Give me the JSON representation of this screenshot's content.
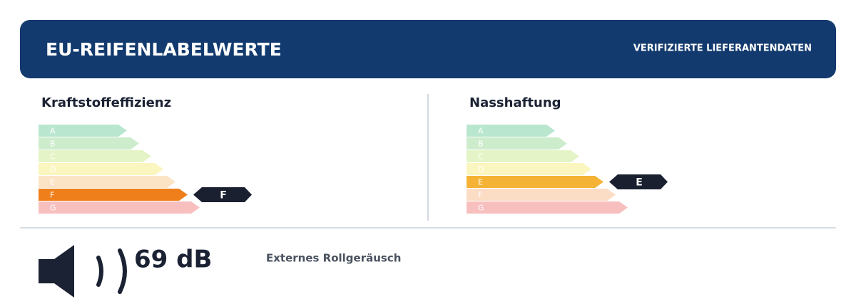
{
  "header": {
    "title": "EU-REIFENLABELWERTE",
    "badge": "VERIFIZIERTE LIEFERANTENDATEN"
  },
  "sections": [
    {
      "title": "Kraftstoffeffizienz",
      "classes": [
        "A",
        "B",
        "C",
        "D",
        "E",
        "F",
        "G"
      ],
      "rating": "F"
    },
    {
      "title": "Nasshaftung",
      "classes": [
        "A",
        "B",
        "C",
        "D",
        "E",
        "F",
        "G"
      ],
      "rating": "E"
    }
  ],
  "noise": {
    "value": "69 dB",
    "label": "Externes Rollgeräusch"
  }
}
